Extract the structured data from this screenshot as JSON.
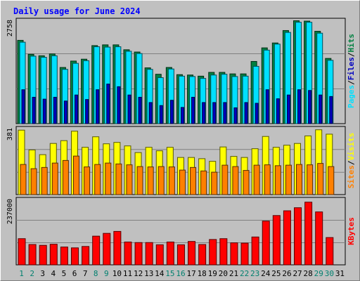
{
  "chart_data": [
    {
      "type": "bar",
      "title": "Daily usage for June 2024",
      "ylabel_parts": [
        "Pages",
        "Files",
        "Hits"
      ],
      "max_label": "2758",
      "ylim": [
        0,
        2758
      ],
      "categories": [
        "1",
        "2",
        "3",
        "4",
        "5",
        "6",
        "7",
        "8",
        "9",
        "10",
        "11",
        "12",
        "13",
        "14",
        "15",
        "16",
        "17",
        "18",
        "19",
        "20",
        "21",
        "22",
        "23",
        "24",
        "25",
        "26",
        "27",
        "28",
        "29",
        "30",
        "31"
      ],
      "weekend_days": [
        "1",
        "2",
        "8",
        "9",
        "15",
        "16",
        "22",
        "23",
        "29",
        "30"
      ],
      "series": [
        {
          "name": "Hits",
          "values": [
            2210,
            1840,
            1800,
            1850,
            1490,
            1660,
            1710,
            2070,
            2090,
            2090,
            1960,
            1900,
            1480,
            1310,
            1490,
            1300,
            1290,
            1260,
            1360,
            1360,
            1320,
            1320,
            1650,
            2010,
            2140,
            2470,
            2730,
            2720,
            2450,
            1730,
            0
          ]
        },
        {
          "name": "Files",
          "values": [
            2160,
            1790,
            1760,
            1800,
            1440,
            1600,
            1670,
            2040,
            2030,
            2040,
            1920,
            1860,
            1440,
            1220,
            1450,
            1260,
            1250,
            1200,
            1290,
            1310,
            1250,
            1260,
            1520,
            1950,
            2110,
            2420,
            2690,
            2690,
            2400,
            1680,
            0
          ]
        },
        {
          "name": "Pages",
          "values": [
            900,
            700,
            650,
            700,
            600,
            760,
            640,
            900,
            1050,
            980,
            760,
            700,
            560,
            480,
            620,
            430,
            700,
            560,
            560,
            560,
            420,
            560,
            540,
            900,
            660,
            760,
            900,
            880,
            760,
            720,
            0
          ]
        }
      ],
      "colors": {
        "Hits": "#008040",
        "Files": "#00e0ff",
        "Pages": "#0000c0"
      }
    },
    {
      "type": "bar",
      "ylabel_parts": [
        "Sites",
        "Visits"
      ],
      "max_label": "381",
      "ylim": [
        0,
        381
      ],
      "series": [
        {
          "name": "Visits",
          "values": [
            368,
            255,
            228,
            292,
            308,
            362,
            270,
            330,
            290,
            298,
            278,
            240,
            270,
            250,
            270,
            212,
            212,
            205,
            190,
            272,
            218,
            212,
            262,
            332,
            270,
            282,
            292,
            335,
            370,
            345,
            0
          ]
        },
        {
          "name": "Sites",
          "values": [
            172,
            148,
            155,
            180,
            195,
            220,
            158,
            172,
            180,
            175,
            170,
            160,
            158,
            160,
            158,
            140,
            155,
            135,
            128,
            168,
            160,
            138,
            168,
            170,
            165,
            168,
            172,
            170,
            178,
            160,
            0
          ]
        }
      ],
      "colors": {
        "Visits": "#ffff00",
        "Sites": "#ff8000"
      }
    },
    {
      "type": "bar",
      "ylabel_parts": [
        "KBytes"
      ],
      "max_label": "237000",
      "ylim": [
        0,
        237000
      ],
      "series": [
        {
          "name": "KBytes",
          "values": [
            94000,
            73000,
            70000,
            74000,
            64000,
            61000,
            66000,
            103000,
            113000,
            120000,
            82000,
            80000,
            80000,
            72000,
            82000,
            72000,
            84000,
            73000,
            91000,
            94000,
            79000,
            78000,
            100000,
            157000,
            177000,
            194000,
            205000,
            225000,
            190000,
            98000,
            0
          ]
        }
      ],
      "colors": {
        "KBytes": "#ff0000"
      }
    }
  ],
  "colors": {
    "background": "#c0c0c0",
    "title": "#0000ff",
    "weekday_label": "#000000",
    "weekend_label": "#00806f"
  }
}
